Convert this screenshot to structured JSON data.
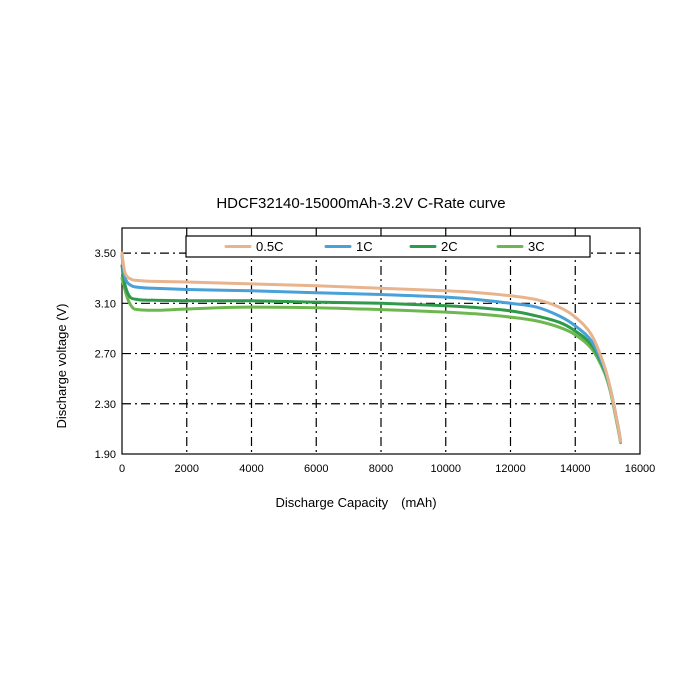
{
  "chart_data": {
    "type": "line",
    "title": "HDCF32140-15000mAh-3.2V C-Rate curve",
    "xlabel": "Discharge Capacity　(mAh)",
    "ylabel": "Discharge  voltage  (V)",
    "xlim": [
      0,
      16000
    ],
    "ylim": [
      1.9,
      3.7
    ],
    "x_ticks": [
      0,
      2000,
      4000,
      6000,
      8000,
      10000,
      12000,
      14000,
      16000
    ],
    "x_tick_labels": [
      "0",
      "2000",
      "4000",
      "6000",
      "8000",
      "10000",
      "12000",
      "14000",
      "16000"
    ],
    "y_ticks": [
      1.9,
      2.3,
      2.7,
      3.1,
      3.5
    ],
    "y_tick_labels": [
      "1.90",
      "2.30",
      "2.70",
      "3.10",
      "3.50"
    ],
    "grid": true,
    "legend_position": "top",
    "series": [
      {
        "name": "0.5C",
        "color": "#e8b48e",
        "x": [
          0,
          100,
          300,
          600,
          1000,
          2000,
          4000,
          6000,
          8000,
          10000,
          11000,
          12000,
          12800,
          13500,
          14000,
          14500,
          14900,
          15100,
          15300,
          15400
        ],
        "y": [
          3.5,
          3.34,
          3.29,
          3.28,
          3.275,
          3.27,
          3.255,
          3.24,
          3.22,
          3.2,
          3.185,
          3.16,
          3.13,
          3.07,
          2.99,
          2.85,
          2.6,
          2.4,
          2.15,
          2.0
        ]
      },
      {
        "name": "1C",
        "color": "#4aa0d8",
        "x": [
          0,
          100,
          300,
          600,
          1000,
          2000,
          4000,
          6000,
          8000,
          10000,
          11000,
          12000,
          12800,
          13500,
          14000,
          14500,
          14900,
          15100,
          15300,
          15400
        ],
        "y": [
          3.48,
          3.3,
          3.24,
          3.225,
          3.22,
          3.21,
          3.2,
          3.185,
          3.17,
          3.15,
          3.13,
          3.1,
          3.07,
          3.0,
          2.92,
          2.8,
          2.58,
          2.4,
          2.15,
          2.0
        ]
      },
      {
        "name": "2C",
        "color": "#2e9a4a",
        "x": [
          0,
          100,
          250,
          500,
          800,
          1000,
          2000,
          4000,
          6000,
          8000,
          10000,
          11000,
          12000,
          12800,
          13500,
          14000,
          14500,
          14900,
          15100,
          15300,
          15400
        ],
        "y": [
          3.4,
          3.24,
          3.15,
          3.13,
          3.125,
          3.125,
          3.12,
          3.12,
          3.11,
          3.1,
          3.08,
          3.065,
          3.04,
          3.0,
          2.95,
          2.88,
          2.77,
          2.57,
          2.4,
          2.15,
          2.0
        ]
      },
      {
        "name": "3C",
        "color": "#6db84e",
        "x": [
          0,
          100,
          200,
          350,
          500,
          800,
          1200,
          2000,
          3000,
          4000,
          6000,
          8000,
          10000,
          11000,
          12000,
          12800,
          13500,
          14000,
          14500,
          14900,
          15100,
          15300,
          15400
        ],
        "y": [
          3.3,
          3.2,
          3.12,
          3.06,
          3.05,
          3.045,
          3.045,
          3.055,
          3.065,
          3.07,
          3.065,
          3.05,
          3.03,
          3.015,
          2.99,
          2.96,
          2.91,
          2.85,
          2.74,
          2.55,
          2.38,
          2.13,
          1.99
        ]
      }
    ]
  }
}
